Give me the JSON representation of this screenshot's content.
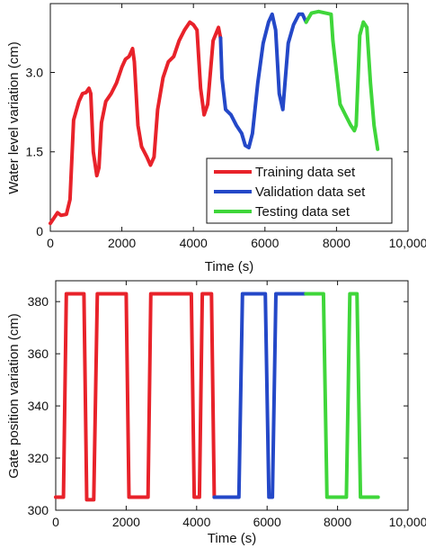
{
  "chart_data": [
    {
      "type": "line",
      "xlabel": "Time (s)",
      "ylabel": "Water level variation (cm)",
      "xlim": [
        0,
        10000
      ],
      "ylim": [
        0,
        4.3
      ],
      "x_ticks": [
        0,
        2000,
        4000,
        6000,
        8000,
        10000
      ],
      "x_tick_labels": [
        "0",
        "2000",
        "4000",
        "6000",
        "8000",
        "10,000"
      ],
      "y_ticks": [
        0,
        1.5,
        3.0
      ],
      "y_tick_labels": [
        "0",
        "1.5",
        "3.0"
      ],
      "grid": false,
      "legend_position": "bottom-right",
      "series": [
        {
          "name": "Training data set",
          "color": "#e8222a",
          "points": [
            [
              0,
              0.15
            ],
            [
              200,
              0.35
            ],
            [
              300,
              0.3
            ],
            [
              450,
              0.32
            ],
            [
              550,
              0.6
            ],
            [
              650,
              2.1
            ],
            [
              800,
              2.45
            ],
            [
              900,
              2.6
            ],
            [
              1000,
              2.62
            ],
            [
              1080,
              2.7
            ],
            [
              1130,
              2.6
            ],
            [
              1200,
              1.5
            ],
            [
              1300,
              1.05
            ],
            [
              1360,
              1.2
            ],
            [
              1430,
              2.05
            ],
            [
              1550,
              2.45
            ],
            [
              1700,
              2.6
            ],
            [
              1850,
              2.8
            ],
            [
              2000,
              3.1
            ],
            [
              2100,
              3.25
            ],
            [
              2200,
              3.3
            ],
            [
              2300,
              3.45
            ],
            [
              2350,
              3.2
            ],
            [
              2450,
              2.0
            ],
            [
              2550,
              1.6
            ],
            [
              2700,
              1.4
            ],
            [
              2800,
              1.25
            ],
            [
              2900,
              1.4
            ],
            [
              3000,
              2.3
            ],
            [
              3150,
              2.9
            ],
            [
              3300,
              3.2
            ],
            [
              3450,
              3.3
            ],
            [
              3600,
              3.6
            ],
            [
              3750,
              3.8
            ],
            [
              3900,
              3.95
            ],
            [
              4000,
              3.9
            ],
            [
              4100,
              3.8
            ],
            [
              4200,
              2.7
            ],
            [
              4300,
              2.2
            ],
            [
              4400,
              2.4
            ],
            [
              4550,
              3.6
            ],
            [
              4700,
              3.85
            ],
            [
              4760,
              3.65
            ]
          ]
        },
        {
          "name": "Validation data set",
          "color": "#2448c8",
          "points": [
            [
              4760,
              3.65
            ],
            [
              4800,
              2.9
            ],
            [
              4900,
              2.3
            ],
            [
              5050,
              2.2
            ],
            [
              5200,
              2.0
            ],
            [
              5350,
              1.85
            ],
            [
              5450,
              1.62
            ],
            [
              5550,
              1.58
            ],
            [
              5650,
              1.85
            ],
            [
              5800,
              2.8
            ],
            [
              5950,
              3.55
            ],
            [
              6100,
              3.95
            ],
            [
              6200,
              4.1
            ],
            [
              6300,
              3.8
            ],
            [
              6400,
              2.6
            ],
            [
              6500,
              2.3
            ],
            [
              6650,
              3.55
            ],
            [
              6800,
              3.9
            ],
            [
              6950,
              4.1
            ],
            [
              7050,
              4.1
            ],
            [
              7150,
              3.95
            ]
          ]
        },
        {
          "name": "Testing data set",
          "color": "#3fd63a",
          "points": [
            [
              7150,
              3.95
            ],
            [
              7300,
              4.12
            ],
            [
              7500,
              4.15
            ],
            [
              7700,
              4.12
            ],
            [
              7850,
              4.1
            ],
            [
              7900,
              3.6
            ],
            [
              8000,
              3.0
            ],
            [
              8100,
              2.4
            ],
            [
              8250,
              2.2
            ],
            [
              8400,
              2.0
            ],
            [
              8500,
              1.9
            ],
            [
              8550,
              2.0
            ],
            [
              8650,
              3.7
            ],
            [
              8750,
              3.95
            ],
            [
              8850,
              3.85
            ],
            [
              8950,
              2.8
            ],
            [
              9050,
              2.0
            ],
            [
              9150,
              1.55
            ]
          ]
        }
      ]
    },
    {
      "type": "line",
      "xlabel": "Time (s)",
      "ylabel": "Gate position variation (cm)",
      "xlim": [
        0,
        10000
      ],
      "ylim": [
        300,
        388
      ],
      "x_ticks": [
        0,
        2000,
        4000,
        6000,
        8000,
        10000
      ],
      "x_tick_labels": [
        "0",
        "2000",
        "4000",
        "6000",
        "8000",
        "10,000"
      ],
      "y_ticks": [
        300,
        320,
        340,
        360,
        380
      ],
      "y_tick_labels": [
        "300",
        "320",
        "340",
        "360",
        "380"
      ],
      "grid": false,
      "series": [
        {
          "name": "Training data set",
          "color": "#e8222a",
          "points": [
            [
              0,
              305
            ],
            [
              220,
              305
            ],
            [
              300,
              383
            ],
            [
              800,
              383
            ],
            [
              880,
              304
            ],
            [
              1080,
              304
            ],
            [
              1180,
              383
            ],
            [
              2000,
              383
            ],
            [
              2080,
              305
            ],
            [
              2620,
              305
            ],
            [
              2700,
              383
            ],
            [
              3850,
              383
            ],
            [
              3930,
              305
            ],
            [
              4080,
              305
            ],
            [
              4160,
              383
            ],
            [
              4420,
              383
            ],
            [
              4500,
              305
            ]
          ]
        },
        {
          "name": "Validation data set",
          "color": "#2448c8",
          "points": [
            [
              4500,
              305
            ],
            [
              5200,
              305
            ],
            [
              5300,
              383
            ],
            [
              5950,
              383
            ],
            [
              6050,
              305
            ],
            [
              6150,
              305
            ],
            [
              6250,
              383
            ],
            [
              7100,
              383
            ]
          ]
        },
        {
          "name": "Testing data set",
          "color": "#3fd63a",
          "points": [
            [
              7100,
              383
            ],
            [
              7600,
              383
            ],
            [
              7700,
              305
            ],
            [
              8250,
              305
            ],
            [
              8350,
              383
            ],
            [
              8550,
              383
            ],
            [
              8650,
              305
            ],
            [
              9150,
              305
            ]
          ]
        }
      ]
    }
  ]
}
